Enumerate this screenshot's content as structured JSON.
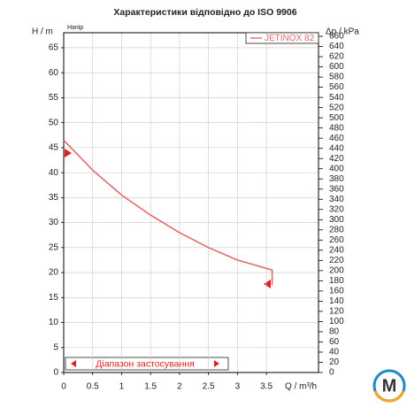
{
  "chart_data": {
    "type": "line",
    "title": "Характеристики відповідно до ISO 9906",
    "y_label": "H / m",
    "y_sublabel": "Напір",
    "y2_label": "Δp / kPa",
    "x_label": "Q / m³/h",
    "range_label": "Діапазон застосування",
    "series": [
      {
        "name": "JETINOX 82",
        "color": "#e06b6b",
        "x": [
          0,
          0.5,
          1,
          1.5,
          2,
          2.5,
          3,
          3.6,
          3.6
        ],
        "values": [
          46.5,
          40.5,
          35.5,
          31.5,
          28,
          25,
          22.5,
          20.5,
          17.5
        ]
      }
    ],
    "xlim": [
      0,
      4.4
    ],
    "xticks": [
      0,
      0.5,
      1,
      1.5,
      2,
      2.5,
      3,
      3.5
    ],
    "ylim": [
      0,
      68
    ],
    "yticks": [
      0,
      5,
      10,
      15,
      20,
      25,
      30,
      35,
      40,
      45,
      50,
      55,
      60,
      65
    ],
    "y2lim": [
      0,
      667
    ],
    "y2ticks": [
      0,
      20,
      40,
      60,
      80,
      100,
      120,
      140,
      160,
      180,
      200,
      220,
      240,
      260,
      280,
      300,
      320,
      340,
      360,
      380,
      400,
      420,
      440,
      460,
      480,
      500,
      520,
      540,
      560,
      580,
      600,
      620,
      640,
      660
    ],
    "grid": true
  }
}
